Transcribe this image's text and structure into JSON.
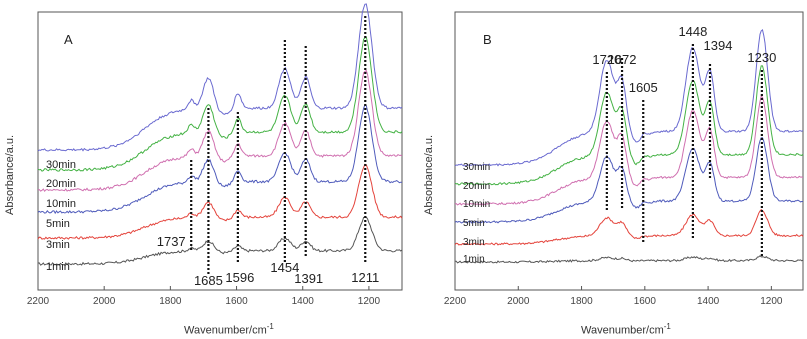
{
  "chart_data": [
    {
      "type": "line",
      "panel_label": "A",
      "xlabel": "Wavenumber/cm",
      "xlabel_sup": "-1",
      "ylabel": "Absorbance/a.u.",
      "xlim": [
        2200,
        1100
      ],
      "x_ticks": [
        2200,
        2000,
        1800,
        1600,
        1400,
        1200
      ],
      "x_tick_labels": [
        "2200",
        "2000",
        "1800",
        "1600",
        "1400",
        "1200"
      ],
      "series": [
        {
          "name": "1min",
          "color": "#555555"
        },
        {
          "name": "3min",
          "color": "#e4443c"
        },
        {
          "name": "5min",
          "color": "#4f5bbb"
        },
        {
          "name": "10min",
          "color": "#d070b0"
        },
        {
          "name": "20min",
          "color": "#44b244"
        },
        {
          "name": "30min",
          "color": "#6a6ad0"
        }
      ],
      "peaks": [
        {
          "x": 1737,
          "label": "1737"
        },
        {
          "x": 1685,
          "label": "1685"
        },
        {
          "x": 1596,
          "label": "1596"
        },
        {
          "x": 1454,
          "label": "1454"
        },
        {
          "x": 1391,
          "label": "1391"
        },
        {
          "x": 1211,
          "label": "1211"
        }
      ]
    },
    {
      "type": "line",
      "panel_label": "B",
      "xlabel": "Wavenumber/cm",
      "xlabel_sup": "-1",
      "ylabel": "Absorbance/a.u.",
      "xlim": [
        2200,
        1100
      ],
      "x_ticks": [
        2200,
        2000,
        1800,
        1600,
        1400,
        1200
      ],
      "x_tick_labels": [
        "2200",
        "2000",
        "1800",
        "1600",
        "1400",
        "1200"
      ],
      "series": [
        {
          "name": "1min",
          "color": "#555555"
        },
        {
          "name": "3min",
          "color": "#e4443c"
        },
        {
          "name": "5min",
          "color": "#4f5bbb"
        },
        {
          "name": "10min",
          "color": "#d070b0"
        },
        {
          "name": "20min",
          "color": "#44b244"
        },
        {
          "name": "30min",
          "color": "#6a6ad0"
        }
      ],
      "peaks": [
        {
          "x": 1720,
          "label": "1720"
        },
        {
          "x": 1672,
          "label": "1672"
        },
        {
          "x": 1605,
          "label": "1605"
        },
        {
          "x": 1448,
          "label": "1448"
        },
        {
          "x": 1394,
          "label": "1394"
        },
        {
          "x": 1230,
          "label": "1230"
        }
      ]
    }
  ]
}
